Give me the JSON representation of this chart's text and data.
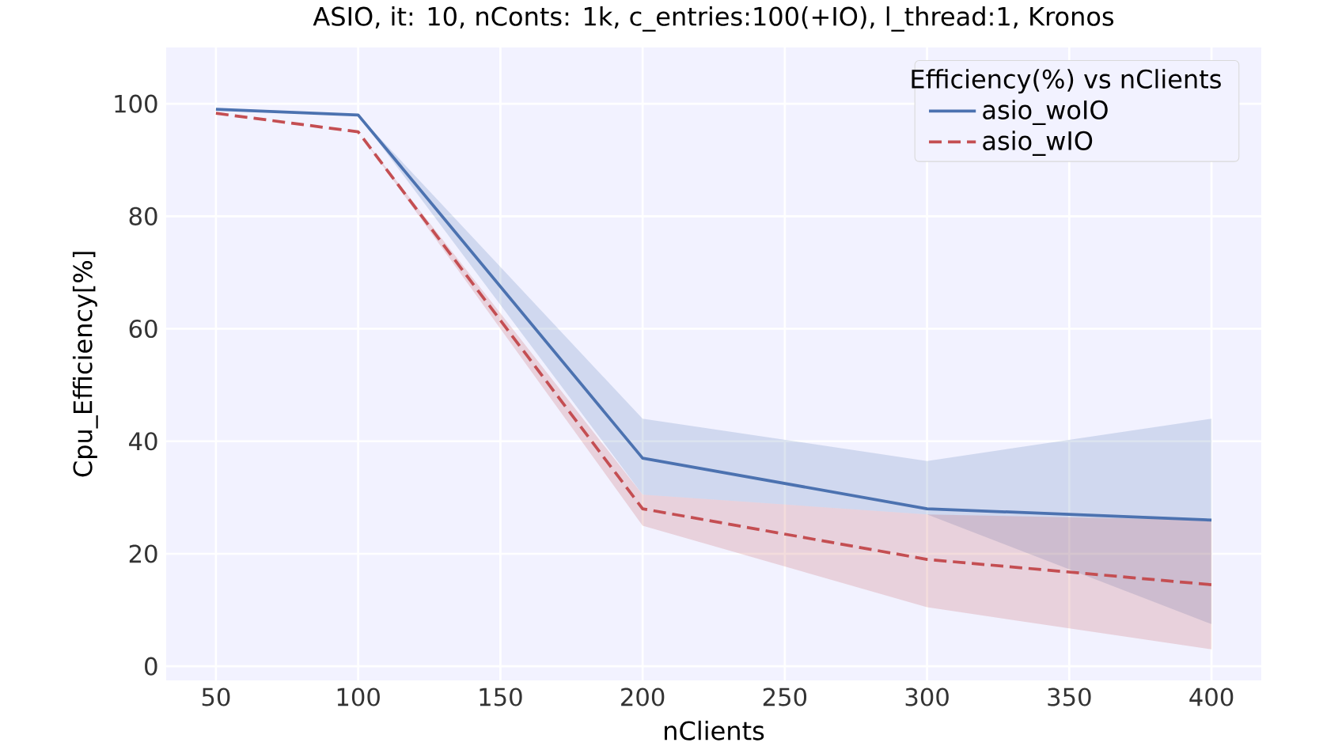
{
  "chart_data": {
    "type": "line",
    "title": "ASIO, it: 10, nConts: 1k, c_entries:100(+IO), l_thread:1, Kronos",
    "xlabel": "nClients",
    "ylabel": "Cpu_Efficiency[%]",
    "legend_title": "Efficiency(%) vs nClients",
    "x": [
      50,
      100,
      200,
      300,
      400
    ],
    "series": [
      {
        "name": "asio_woIO",
        "color": "#4c72b0",
        "line_style": "solid",
        "values": [
          99,
          98,
          37,
          28,
          26
        ],
        "lower": [
          99,
          98,
          30.5,
          27,
          7.5
        ],
        "upper": [
          99,
          98,
          44,
          36.5,
          44
        ]
      },
      {
        "name": "asio_wIO",
        "color": "#c44e52",
        "line_style": "dashed",
        "values": [
          98.3,
          95,
          28,
          19,
          14.5
        ],
        "lower": [
          98.3,
          95,
          25,
          10.5,
          3
        ],
        "upper": [
          98.3,
          95,
          30.5,
          27,
          26
        ]
      }
    ],
    "xlim": [
      32.5,
      417.5
    ],
    "ylim": [
      -2.5,
      110
    ],
    "xticks": [
      50,
      100,
      150,
      200,
      250,
      300,
      350,
      400
    ],
    "yticks": [
      0,
      20,
      40,
      60,
      80,
      100
    ],
    "grid": true,
    "legend": "top right",
    "marker": "none"
  }
}
